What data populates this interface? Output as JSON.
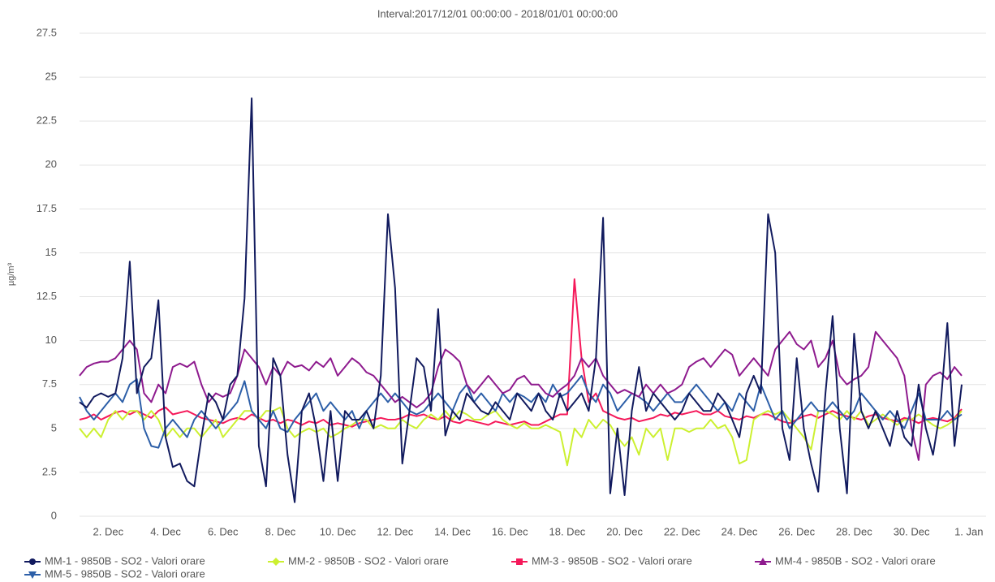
{
  "chart_data": {
    "type": "line",
    "title": "Interval:2017/12/01 00:00:00 - 2018/01/01 00:00:00",
    "y_label": "µg/m³",
    "xlim": [
      1,
      32.6
    ],
    "xticks": [
      {
        "value": 2,
        "label": "2. Dec"
      },
      {
        "value": 4,
        "label": "4. Dec"
      },
      {
        "value": 6,
        "label": "6. Dec"
      },
      {
        "value": 8,
        "label": "8. Dec"
      },
      {
        "value": 10,
        "label": "10. Dec"
      },
      {
        "value": 12,
        "label": "12. Dec"
      },
      {
        "value": 14,
        "label": "14. Dec"
      },
      {
        "value": 16,
        "label": "16. Dec"
      },
      {
        "value": 18,
        "label": "18. Dec"
      },
      {
        "value": 20,
        "label": "20. Dec"
      },
      {
        "value": 22,
        "label": "22. Dec"
      },
      {
        "value": 24,
        "label": "24. Dec"
      },
      {
        "value": 26,
        "label": "26. Dec"
      },
      {
        "value": 28,
        "label": "28. Dec"
      },
      {
        "value": 30,
        "label": "30. Dec"
      },
      {
        "value": 32,
        "label": "1. Jan"
      }
    ],
    "ylim": [
      0,
      27.5
    ],
    "yticks": [
      0,
      2.5,
      5,
      7.5,
      10,
      12.5,
      15,
      17.5,
      20,
      22.5,
      25,
      27.5
    ],
    "grid": true,
    "legend": "bottom",
    "x": [
      1,
      1.25,
      1.5,
      1.75,
      2,
      2.25,
      2.5,
      2.75,
      3,
      3.25,
      3.5,
      3.75,
      4,
      4.25,
      4.5,
      4.75,
      5,
      5.25,
      5.5,
      5.75,
      6,
      6.25,
      6.5,
      6.75,
      7,
      7.25,
      7.5,
      7.75,
      8,
      8.25,
      8.5,
      8.75,
      9,
      9.25,
      9.5,
      9.75,
      10,
      10.25,
      10.5,
      10.75,
      11,
      11.25,
      11.5,
      11.75,
      12,
      12.25,
      12.5,
      12.75,
      13,
      13.25,
      13.5,
      13.75,
      14,
      14.25,
      14.5,
      14.75,
      15,
      15.25,
      15.5,
      15.75,
      16,
      16.25,
      16.5,
      16.75,
      17,
      17.25,
      17.5,
      17.75,
      18,
      18.25,
      18.5,
      18.75,
      19,
      19.25,
      19.5,
      19.75,
      20,
      20.25,
      20.5,
      20.75,
      21,
      21.25,
      21.5,
      21.75,
      22,
      22.25,
      22.5,
      22.75,
      23,
      23.25,
      23.5,
      23.75,
      24,
      24.25,
      24.5,
      24.75,
      25,
      25.25,
      25.5,
      25.75,
      26,
      26.25,
      26.5,
      26.75,
      27,
      27.25,
      27.5,
      27.75,
      28,
      28.25,
      28.5,
      28.75,
      29,
      29.25,
      29.5,
      29.75,
      30,
      30.25,
      30.5,
      30.75,
      31,
      31.25,
      31.5,
      31.75
    ],
    "series": [
      {
        "name": "MM-1 - 9850B - SO2 - Valori orare",
        "color": "#111a5e",
        "marker": "circle",
        "values": [
          6.5,
          6.2,
          6.8,
          7,
          6.8,
          7,
          9,
          14.5,
          7,
          8.5,
          9,
          12.3,
          4.5,
          2.8,
          3,
          2,
          1.7,
          4.5,
          7,
          6.5,
          5.5,
          7.5,
          8,
          12.4,
          23.8,
          4,
          1.7,
          9,
          8,
          3.5,
          0.8,
          6,
          7,
          5,
          2,
          6,
          2,
          6,
          5.5,
          5.5,
          6,
          5,
          8,
          17.2,
          13,
          3,
          6,
          9,
          8.5,
          6,
          11.8,
          4.6,
          6,
          5.5,
          7,
          6.5,
          6,
          5.8,
          6.5,
          6,
          5.5,
          7,
          6.5,
          6,
          7,
          6,
          5.5,
          7,
          6,
          6.5,
          7,
          6,
          9,
          17,
          1.3,
          5,
          1.2,
          6,
          8.5,
          6,
          7,
          6.5,
          6,
          5.5,
          6,
          7,
          6.5,
          6,
          6,
          7,
          6.5,
          5.5,
          4.5,
          7,
          8,
          7,
          17.2,
          15,
          5,
          3.2,
          9,
          5,
          3,
          1.4,
          7,
          11.4,
          5,
          1.3,
          10.4,
          6,
          5,
          6,
          5,
          4,
          6,
          4.5,
          4,
          7.5,
          5,
          3.5,
          6,
          11,
          4,
          7.5
        ]
      },
      {
        "name": "MM-2 - 9850B - SO2 - Valori orare",
        "color": "#ccf030",
        "marker": "diamond",
        "values": [
          5,
          4.5,
          5,
          4.5,
          5.5,
          6,
          5.5,
          6,
          6,
          5.5,
          6,
          5.5,
          4.5,
          5,
          4.5,
          5,
          5,
          4.5,
          5,
          5.5,
          4.5,
          5,
          5.5,
          6,
          6,
          5.5,
          6,
          6,
          6.2,
          5,
          4.5,
          4.8,
          5,
          4.8,
          5,
          4.5,
          4.7,
          5,
          5.2,
          5.5,
          5.5,
          5,
          5.2,
          5,
          5,
          5.5,
          5.2,
          5,
          5.5,
          5.8,
          5.5,
          6,
          5.5,
          6,
          5.8,
          5.5,
          5.5,
          5.8,
          6,
          5.5,
          5.2,
          5,
          5.3,
          5,
          5,
          5.2,
          5,
          4.8,
          2.9,
          5,
          4.5,
          5.5,
          5,
          5.5,
          5.2,
          4.5,
          4,
          4.5,
          3.5,
          5,
          4.5,
          5,
          3.2,
          5,
          5,
          4.8,
          5,
          5,
          5.5,
          5,
          5.2,
          4.5,
          3,
          3.2,
          5.5,
          5.8,
          6,
          5.8,
          6,
          5.5,
          5,
          4.5,
          3.8,
          6,
          6,
          5.8,
          5.5,
          6,
          5.5,
          6,
          5.2,
          5.5,
          5.8,
          5.5,
          5.2,
          5.5,
          5.5,
          5.8,
          5.5,
          5.2,
          5,
          5.2,
          5.5,
          6
        ]
      },
      {
        "name": "MM-3 - 9850B - SO2 - Valori orare",
        "color": "#f5195a",
        "marker": "square",
        "values": [
          5.5,
          5.6,
          5.8,
          5.5,
          5.7,
          5.9,
          6,
          5.8,
          6,
          5.8,
          5.6,
          6,
          6.2,
          5.8,
          5.9,
          6,
          5.8,
          5.6,
          5.5,
          5.4,
          5.3,
          5.5,
          5.6,
          5.5,
          5.8,
          5.6,
          5.4,
          5.5,
          5.3,
          5.5,
          5.4,
          5.2,
          5.4,
          5.3,
          5.5,
          5.2,
          5.3,
          5.2,
          5.1,
          5.3,
          5.4,
          5.5,
          5.6,
          5.5,
          5.5,
          5.6,
          5.8,
          5.7,
          5.8,
          5.6,
          5.5,
          5.7,
          5.4,
          5.3,
          5.5,
          5.4,
          5.3,
          5.2,
          5.4,
          5.3,
          5.2,
          5.3,
          5.4,
          5.2,
          5.2,
          5.4,
          5.6,
          5.8,
          5.8,
          13.5,
          9,
          6.5,
          7,
          6,
          5.8,
          5.6,
          5.5,
          5.6,
          5.4,
          5.5,
          5.6,
          5.8,
          5.7,
          5.9,
          5.8,
          5.9,
          6,
          5.8,
          5.8,
          6,
          5.7,
          5.6,
          5.5,
          5.7,
          5.6,
          5.8,
          5.8,
          5.6,
          5.4,
          5.3,
          5.5,
          5.7,
          5.8,
          5.6,
          5.8,
          6,
          5.8,
          5.7,
          5.6,
          5.5,
          5.7,
          5.8,
          5.6,
          5.5,
          5.4,
          5.6,
          5.5,
          5.3,
          5.5,
          5.6,
          5.5,
          5.4,
          5.6,
          6.1
        ]
      },
      {
        "name": "MM-4 - 9850B - SO2 - Valori orare",
        "color": "#8e1a8e",
        "marker": "triangle",
        "values": [
          8,
          8.5,
          8.7,
          8.8,
          8.8,
          9,
          9.5,
          10,
          9.5,
          7,
          6.5,
          7.5,
          7,
          8.5,
          8.7,
          8.5,
          8.8,
          7.5,
          6.5,
          7,
          6.8,
          7,
          8,
          9.5,
          9,
          8.5,
          7.5,
          8.5,
          8,
          8.8,
          8.5,
          8.6,
          8.3,
          8.8,
          8.5,
          9,
          8,
          8.5,
          9,
          8.7,
          8.2,
          8,
          7.5,
          7,
          6.5,
          6.8,
          6.5,
          6.2,
          6.5,
          7,
          8.5,
          9.5,
          9.2,
          8.8,
          7.5,
          7,
          7.5,
          8,
          7.5,
          7,
          7.2,
          7.8,
          8,
          7.5,
          7.5,
          7,
          6.8,
          7.2,
          7.5,
          8,
          9,
          8.5,
          9,
          8,
          7.5,
          7,
          7.2,
          7,
          6.8,
          7.5,
          7,
          7.5,
          7,
          7.2,
          7.5,
          8.5,
          8.8,
          9,
          8.5,
          9,
          9.5,
          9.2,
          8,
          8.5,
          9,
          8.5,
          8,
          9.5,
          10,
          10.5,
          9.8,
          9.5,
          10,
          8.5,
          9,
          10,
          8,
          7.5,
          7.8,
          8,
          8.5,
          10.5,
          10,
          9.5,
          9,
          8,
          5,
          3.2,
          7.5,
          8,
          8.2,
          7.8,
          8.5,
          8
        ]
      },
      {
        "name": "MM-5 - 9850B - SO2 - Valori orare",
        "color": "#2d5fa8",
        "marker": "triangle-down",
        "values": [
          6.8,
          6,
          5.5,
          6,
          6.5,
          7,
          6.5,
          7.5,
          7.8,
          5,
          4,
          3.9,
          5,
          5.5,
          5,
          4.5,
          5.5,
          6,
          5.5,
          5,
          5.5,
          6,
          6.5,
          7.7,
          6,
          5.5,
          5,
          6,
          5,
          4.8,
          5.5,
          6,
          6.5,
          7,
          6,
          6.5,
          6,
          5.5,
          6,
          5,
          6,
          6.5,
          7,
          6.5,
          7,
          6.5,
          6,
          5.8,
          6,
          6.5,
          7,
          6.5,
          6,
          7,
          7.5,
          6.5,
          7,
          6.5,
          6,
          7,
          6.5,
          7,
          6.8,
          6.5,
          7,
          6.5,
          7.5,
          6.8,
          7,
          7.5,
          8,
          7,
          6.5,
          7.5,
          7,
          6,
          6.5,
          7,
          6.8,
          6.5,
          6,
          6.5,
          7,
          6.5,
          6.5,
          7,
          7.5,
          7,
          6.5,
          6,
          6.5,
          6,
          7,
          6.5,
          6,
          7.5,
          6.5,
          5.5,
          6,
          5,
          5.5,
          6,
          6.5,
          6,
          6,
          6.5,
          6,
          5.5,
          6,
          7,
          6.5,
          6,
          5.5,
          6,
          5.5,
          5,
          6,
          7,
          5.5,
          5.5,
          5.5,
          6,
          5.5,
          5.8
        ]
      }
    ]
  }
}
